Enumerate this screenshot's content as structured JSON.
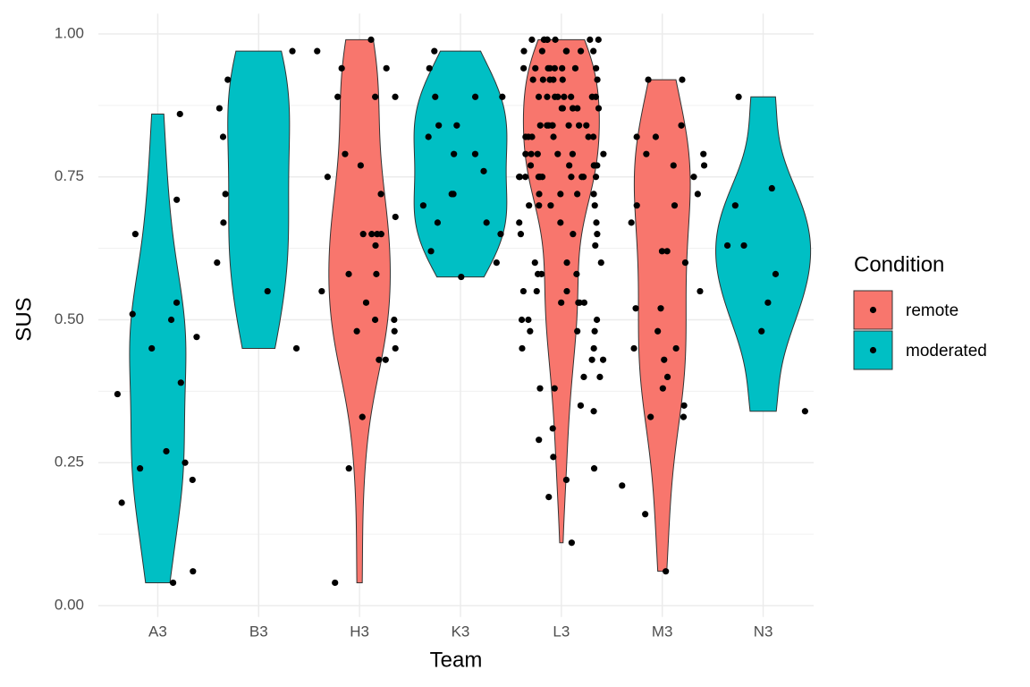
{
  "chart_data": {
    "type": "violin",
    "x_label": "Team",
    "y_label": "SUS",
    "legend_title": "Condition",
    "categories": [
      "A3",
      "B3",
      "H3",
      "K3",
      "L3",
      "M3",
      "N3"
    ],
    "ylim": [
      -0.02,
      1.02
    ],
    "yticks": [
      {
        "value": 0,
        "label": "0.00"
      },
      {
        "value": 0.25,
        "label": "0.25"
      },
      {
        "value": 0.5,
        "label": "0.50"
      },
      {
        "value": 0.75,
        "label": "0.75"
      },
      {
        "value": 1,
        "label": "1.00"
      }
    ],
    "grid": true,
    "legend": "right",
    "point_color": "#000000",
    "series": [
      {
        "name": "remote",
        "color": "#F8766D",
        "values": [
          null,
          null,
          [
            0.97,
            0.89,
            0.94,
            0.04,
            0.43,
            0.33,
            0.79,
            0.72,
            0.65,
            0.65,
            0.89,
            0.99,
            0.94,
            0.89,
            0.24,
            0.65,
            0.58,
            0.55,
            0.5,
            0.48,
            0.45,
            0.43,
            0.75,
            0.77,
            0.68,
            0.63,
            0.65,
            0.53,
            0.48,
            0.5,
            0.58
          ],
          null,
          [
            0.99,
            0.99,
            0.99,
            0.99,
            0.99,
            0.99,
            0.99,
            0.99,
            0.97,
            0.97,
            0.97,
            0.97,
            0.97,
            0.97,
            0.94,
            0.94,
            0.94,
            0.94,
            0.94,
            0.94,
            0.94,
            0.94,
            0.92,
            0.92,
            0.92,
            0.92,
            0.92,
            0.92,
            0.89,
            0.89,
            0.89,
            0.89,
            0.89,
            0.89,
            0.89,
            0.89,
            0.87,
            0.87,
            0.87,
            0.87,
            0.87,
            0.87,
            0.84,
            0.84,
            0.84,
            0.84,
            0.84,
            0.84,
            0.84,
            0.84,
            0.82,
            0.82,
            0.82,
            0.82,
            0.82,
            0.82,
            0.79,
            0.79,
            0.79,
            0.79,
            0.79,
            0.79,
            0.77,
            0.77,
            0.77,
            0.77,
            0.77,
            0.77,
            0.75,
            0.75,
            0.75,
            0.75,
            0.75,
            0.75,
            0.75,
            0.75,
            0.75,
            0.75,
            0.72,
            0.72,
            0.72,
            0.72,
            0.7,
            0.7,
            0.7,
            0.7,
            0.67,
            0.67,
            0.67,
            0.65,
            0.65,
            0.65,
            0.63,
            0.6,
            0.6,
            0.6,
            0.58,
            0.58,
            0.58,
            0.55,
            0.55,
            0.55,
            0.53,
            0.53,
            0.53,
            0.53,
            0.5,
            0.5,
            0.5,
            0.48,
            0.48,
            0.48,
            0.45,
            0.45,
            0.43,
            0.43,
            0.4,
            0.4,
            0.38,
            0.38,
            0.35,
            0.34,
            0.31,
            0.29,
            0.26,
            0.24,
            0.22,
            0.19,
            0.11
          ],
          [
            0.92,
            0.92,
            0.84,
            0.82,
            0.82,
            0.79,
            0.79,
            0.77,
            0.77,
            0.75,
            0.72,
            0.7,
            0.7,
            0.67,
            0.62,
            0.62,
            0.6,
            0.55,
            0.52,
            0.52,
            0.48,
            0.45,
            0.45,
            0.43,
            0.4,
            0.38,
            0.35,
            0.33,
            0.33,
            0.21,
            0.16,
            0.06
          ],
          null
        ]
      },
      {
        "name": "moderated",
        "color": "#00BFC4",
        "values": [
          [
            0.51,
            0.53,
            0.24,
            0.65,
            0.5,
            0.45,
            0.18,
            0.39,
            0.25,
            0.06,
            0.22,
            0.04,
            0.47,
            0.37,
            0.86,
            0.27,
            0.71
          ],
          [
            0.97,
            0.87,
            0.92,
            0.82,
            0.72,
            0.67,
            0.6,
            0.55,
            0.45
          ],
          null,
          [
            0.97,
            0.94,
            0.89,
            0.89,
            0.84,
            0.84,
            0.89,
            0.79,
            0.79,
            0.76,
            0.72,
            0.72,
            0.7,
            0.67,
            0.67,
            0.65,
            0.62,
            0.6,
            0.575,
            0.82
          ],
          null,
          null,
          [
            0.89,
            0.73,
            0.7,
            0.63,
            0.63,
            0.58,
            0.53,
            0.48,
            0.34
          ]
        ]
      }
    ]
  }
}
